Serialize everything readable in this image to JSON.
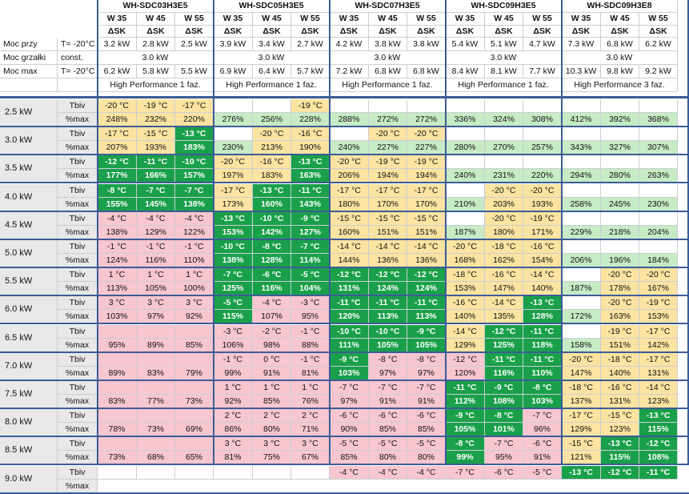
{
  "models": [
    "WH-SDC03H3E5",
    "WH-SDC05H3E5",
    "WH-SDC07H3E5",
    "WH-SDC09H3E5",
    "WH-SDC09H3E8"
  ],
  "col_head_top": [
    "W 35",
    "W 45",
    "W 55"
  ],
  "col_head_bottom": [
    "ΔSK",
    "ΔSK",
    "ΔSK"
  ],
  "info_rows": [
    {
      "label": "Moc przy",
      "cond": "T= -20°C",
      "values": [
        "3.2 kW",
        "2.8 kW",
        "2.5 kW",
        "3.9 kW",
        "3.4 kW",
        "2.7 kW",
        "4.2 kW",
        "3.8 kW",
        "3.8 kW",
        "5.4 kW",
        "5.1 kW",
        "4.7 kW",
        "7.3 kW",
        "6.8 kW",
        "6.2 kW"
      ]
    },
    {
      "label": "Moc grzałki",
      "cond": "const.",
      "merged": [
        "3.0 kW",
        "3.0 kW",
        "3.0 kW",
        "3.0 kW",
        "3.0 kW"
      ]
    },
    {
      "label": "Moc max",
      "cond": "T= -20°C",
      "values": [
        "6.2 kW",
        "5.8 kW",
        "5.5 kW",
        "6.9 kW",
        "6.4 kW",
        "5.7 kW",
        "7.2 kW",
        "6.8 kW",
        "6.8 kW",
        "8.4 kW",
        "8.1 kW",
        "7.7 kW",
        "10.3 kW",
        "9.8 kW",
        "9.2 kW"
      ]
    },
    {
      "label": "",
      "cond": "",
      "merged": [
        "High Performance 1 faz.",
        "High Performance 1 faz.",
        "High Performance 1 faz.",
        "High Performance 1 faz.",
        "High Performance 3 faz."
      ]
    }
  ],
  "sub_labels": [
    "Tbiv",
    "%max"
  ],
  "blocks": [
    {
      "load": "2.5 kW",
      "tbiv": [
        "-20 °C",
        "-19 °C",
        "-17 °C",
        "",
        "",
        "-19 °C",
        "",
        "",
        "",
        "",
        "",
        "",
        "",
        "",
        ""
      ],
      "tc": "yyywwywwwwwwwww",
      "pmax": [
        "248%",
        "232%",
        "220%",
        "276%",
        "256%",
        "228%",
        "288%",
        "272%",
        "272%",
        "336%",
        "324%",
        "308%",
        "412%",
        "392%",
        "368%"
      ],
      "pc": "yyygggggggggggg"
    },
    {
      "load": "3.0 kW",
      "tbiv": [
        "-17 °C",
        "-15 °C",
        "-13 °C",
        "",
        "-20 °C",
        "-16 °C",
        "",
        "-20 °C",
        "-20 °C",
        "",
        "",
        "",
        "",
        "",
        ""
      ],
      "tc": "yyDwyywyywwwwww",
      "pmax": [
        "207%",
        "193%",
        "183%",
        "230%",
        "213%",
        "190%",
        "240%",
        "227%",
        "227%",
        "280%",
        "270%",
        "257%",
        "343%",
        "327%",
        "307%"
      ],
      "pc": "yyDgyyggggggggg"
    },
    {
      "load": "3.5 kW",
      "tbiv": [
        "-12 °C",
        "-11 °C",
        "-10 °C",
        "-20 °C",
        "-16 °C",
        "-13 °C",
        "-20 °C",
        "-19 °C",
        "-19 °C",
        "",
        "",
        "",
        "",
        "",
        ""
      ],
      "tc": "DDDyyDyyywwwwww",
      "pmax": [
        "177%",
        "166%",
        "157%",
        "197%",
        "183%",
        "163%",
        "206%",
        "194%",
        "194%",
        "240%",
        "231%",
        "220%",
        "294%",
        "280%",
        "263%"
      ],
      "pc": "DDDyyDyyygggggg"
    },
    {
      "load": "4.0 kW",
      "tbiv": [
        "-8 °C",
        "-7 °C",
        "-7 °C",
        "-17 °C",
        "-13 °C",
        "-11 °C",
        "-17 °C",
        "-17 °C",
        "-17 °C",
        "",
        "-20 °C",
        "-20 °C",
        "",
        "",
        ""
      ],
      "tc": "DDDyDDyyywyywww",
      "pmax": [
        "155%",
        "145%",
        "138%",
        "173%",
        "160%",
        "143%",
        "180%",
        "170%",
        "170%",
        "210%",
        "203%",
        "193%",
        "258%",
        "245%",
        "230%"
      ],
      "pc": "DDDyDDyyyg yyggg"
    },
    {
      "load": "4.5 kW",
      "tbiv": [
        "-4 °C",
        "-4 °C",
        "-4 °C",
        "-13 °C",
        "-10 °C",
        "-9 °C",
        "-15 °C",
        "-15 °C",
        "-15 °C",
        "",
        "-20 °C",
        "-19 °C",
        "",
        "",
        ""
      ],
      "tc": "pppDDDyyywyywww",
      "pmax": [
        "138%",
        "129%",
        "122%",
        "153%",
        "142%",
        "127%",
        "160%",
        "151%",
        "151%",
        "187%",
        "180%",
        "171%",
        "229%",
        "218%",
        "204%"
      ],
      "pc": "pppDDDyyygyyggg"
    },
    {
      "load": "5.0 kW",
      "tbiv": [
        "-1 °C",
        "-1 °C",
        "-1 °C",
        "-10 °C",
        "-8 °C",
        "-7 °C",
        "-14 °C",
        "-14 °C",
        "-14 °C",
        "-20 °C",
        "-18 °C",
        "-16 °C",
        "",
        "",
        ""
      ],
      "tc": "pppDDDyyyyyywww",
      "pmax": [
        "124%",
        "116%",
        "110%",
        "138%",
        "128%",
        "114%",
        "144%",
        "136%",
        "136%",
        "168%",
        "162%",
        "154%",
        "206%",
        "196%",
        "184%"
      ],
      "pc": "pppDDDyyyyyyggg"
    },
    {
      "load": "5.5 kW",
      "tbiv": [
        "1 °C",
        "1 °C",
        "1 °C",
        "-7 °C",
        "-6 °C",
        "-5 °C",
        "-12 °C",
        "-12 °C",
        "-12 °C",
        "-18 °C",
        "-16 °C",
        "-14 °C",
        "",
        "-20 °C",
        "-20 °C"
      ],
      "tc": "pppDDDDDDyyywyy",
      "pmax": [
        "113%",
        "105%",
        "100%",
        "125%",
        "116%",
        "104%",
        "131%",
        "124%",
        "124%",
        "153%",
        "147%",
        "140%",
        "187%",
        "178%",
        "167%"
      ],
      "pc": "pppDDDDDDyyygyy"
    },
    {
      "load": "6.0 kW",
      "tbiv": [
        "3 °C",
        "3 °C",
        "3 °C",
        "-5 °C",
        "-4 °C",
        "-3 °C",
        "-11 °C",
        "-11 °C",
        "-11 °C",
        "-16 °C",
        "-14 °C",
        "-13 °C",
        "",
        "-20 °C",
        "-19 °C"
      ],
      "tc": "pppDppDDDyyDwyy",
      "pmax": [
        "103%",
        "97%",
        "92%",
        "115%",
        "107%",
        "95%",
        "120%",
        "113%",
        "113%",
        "140%",
        "135%",
        "128%",
        "172%",
        "163%",
        "153%"
      ],
      "pc": "pppDppDDDyyDgyy"
    },
    {
      "load": "6.5 kW",
      "tbiv": [
        "",
        "",
        "",
        "-3 °C",
        "-2 °C",
        "-1 °C",
        "-10 °C",
        "-10 °C",
        "-9 °C",
        "-14 °C",
        "-12 °C",
        "-11 °C",
        "",
        "-19 °C",
        "-17 °C"
      ],
      "tc": "pppppp DDDyDDwyy",
      "pmax": [
        "95%",
        "89%",
        "85%",
        "106%",
        "98%",
        "88%",
        "111%",
        "105%",
        "105%",
        "129%",
        "125%",
        "118%",
        "158%",
        "151%",
        "142%"
      ],
      "pc": "pppppp DDDyDDgyy"
    },
    {
      "load": "7.0 kW",
      "tbiv": [
        "",
        "",
        "",
        "-1 °C",
        "0 °C",
        "-1 °C",
        "-9 °C",
        "-8 °C",
        "-8 °C",
        "-12 °C",
        "-11 °C",
        "-11 °C",
        "-20 °C",
        "-18 °C",
        "-17 °C"
      ],
      "tc": "ppppppDpppDDyyy",
      "pmax": [
        "89%",
        "83%",
        "79%",
        "99%",
        "91%",
        "81%",
        "103%",
        "97%",
        "97%",
        "120%",
        "116%",
        "110%",
        "147%",
        "140%",
        "131%"
      ],
      "pc": "ppppppDpppDDyyy"
    },
    {
      "load": "7.5 kW",
      "tbiv": [
        "",
        "",
        "",
        "1 °C",
        "1 °C",
        "1 °C",
        "-7 °C",
        "-7 °C",
        "-7 °C",
        "-11 °C",
        "-9 °C",
        "-8 °C",
        "-18 °C",
        "-16 °C",
        "-14 °C"
      ],
      "tc": "pppppppppDDDyyy",
      "pmax": [
        "83%",
        "77%",
        "73%",
        "92%",
        "85%",
        "76%",
        "97%",
        "91%",
        "91%",
        "112%",
        "108%",
        "103%",
        "137%",
        "131%",
        "123%"
      ],
      "pc": "pppppppppDDDyyy"
    },
    {
      "load": "8.0 kW",
      "tbiv": [
        "",
        "",
        "",
        "2 °C",
        "2 °C",
        "2 °C",
        "-6 °C",
        "-6 °C",
        "-6 °C",
        "-9 °C",
        "-8 °C",
        "-7 °C",
        "-17 °C",
        "-15 °C",
        "-13 °C"
      ],
      "tc": "pppppppppDDpyyD",
      "pmax": [
        "78%",
        "73%",
        "69%",
        "86%",
        "80%",
        "71%",
        "90%",
        "85%",
        "85%",
        "105%",
        "101%",
        "96%",
        "129%",
        "123%",
        "115%"
      ],
      "pc": "pppppppppDDpyyD"
    },
    {
      "load": "8.5 kW",
      "tbiv": [
        "",
        "",
        "",
        "3 °C",
        "3 °C",
        "3 °C",
        "-5 °C",
        "-5 °C",
        "-5 °C",
        "-8 °C",
        "-7 °C",
        "-6 °C",
        "-15 °C",
        "-13 °C",
        "-12 °C"
      ],
      "tc": "pppppppppDppyDD",
      "pmax": [
        "73%",
        "68%",
        "65%",
        "81%",
        "75%",
        "67%",
        "85%",
        "80%",
        "80%",
        "99%",
        "95%",
        "91%",
        "121%",
        "115%",
        "108%"
      ],
      "pc": "pppppppppDppyDD"
    },
    {
      "load": "9.0 kW",
      "tbiv": [
        "",
        "",
        "",
        "",
        "",
        "",
        "-4 °C",
        "-4 °C",
        "-4 °C",
        "-7 °C",
        "-6 °C",
        "-5 °C",
        "-13 °C",
        "-12 °C",
        "-11 °C"
      ],
      "tc": "wwwwwwppppppDDD",
      "pmax": [],
      "pc": ""
    }
  ]
}
